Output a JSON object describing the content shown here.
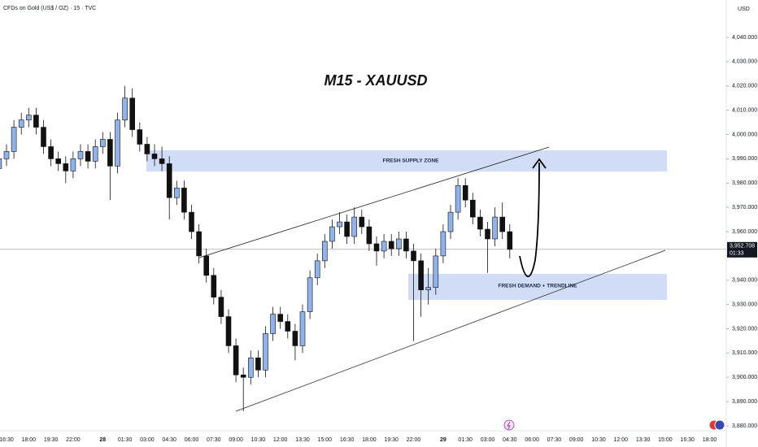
{
  "chart_data": {
    "type": "candlestick",
    "title": "M15 - XAUUSD",
    "symbol_header": "CFDs on Gold (US$ / OZ) · 15 · TVC",
    "y_axis_unit": "USD",
    "annotations": [
      "FRESH SUPPLY ZONE",
      "FRESH DEMAND + TRENDLINE"
    ],
    "up_color": "#8fb3ea",
    "down_color": "#111111",
    "grid": false,
    "price_marker": {
      "value": 3952.708,
      "label": "3,952.708"
    },
    "countdown": "01:33",
    "ylim": [
      3878,
      4055.4
    ],
    "yticks": [
      {
        "value": 4040,
        "label": "4,040.000"
      },
      {
        "value": 4030,
        "label": "4,030.000"
      },
      {
        "value": 4020,
        "label": "4,020.000"
      },
      {
        "value": 4010,
        "label": "4,010.000"
      },
      {
        "value": 4000,
        "label": "4,000.000"
      },
      {
        "value": 3990,
        "label": "3,990.000"
      },
      {
        "value": 3980,
        "label": "3,980.000"
      },
      {
        "value": 3970,
        "label": "3,970.000"
      },
      {
        "value": 3960,
        "label": "3,960.000"
      },
      {
        "value": 3950,
        "label": "3,950.000"
      },
      {
        "value": 3940,
        "label": "3,940.000"
      },
      {
        "value": 3930,
        "label": "3,930.000"
      },
      {
        "value": 3920,
        "label": "3,920.000"
      },
      {
        "value": 3910,
        "label": "3,910.000"
      },
      {
        "value": 3900,
        "label": "3,900.000"
      },
      {
        "value": 3890,
        "label": "3,890.000"
      },
      {
        "value": 3880,
        "label": "3,880.000"
      }
    ],
    "categories": [
      null,
      "16:30",
      null,
      null,
      "18:00",
      null,
      null,
      "19:30",
      null,
      null,
      "22:00",
      null,
      null,
      null,
      "28",
      null,
      null,
      "01:30",
      null,
      null,
      "03:00",
      null,
      null,
      "04:30",
      null,
      null,
      "06:00",
      null,
      null,
      "07:30",
      null,
      null,
      "09:00",
      null,
      null,
      "10:30",
      null,
      null,
      "12:00",
      null,
      null,
      "13:30",
      null,
      null,
      "15:00",
      null,
      null,
      "16:30",
      null,
      null,
      "18:00",
      null,
      null,
      "19:30",
      null,
      null,
      "22:00",
      null,
      null,
      null,
      "29",
      null,
      null,
      "01:30",
      null,
      null,
      "03:00",
      null,
      null,
      "04:30",
      null,
      null,
      "06:00",
      null,
      null,
      "07:30",
      null,
      null,
      "09:00",
      null,
      null,
      "10:30",
      null,
      null,
      "12:00",
      null,
      null,
      "13:30",
      null,
      null,
      "15:00",
      null,
      null,
      "16:30",
      null,
      null,
      "18:00"
    ],
    "open": [
      3986,
      3990,
      3993,
      4003,
      4006,
      4008,
      4003,
      3995,
      3990,
      3988,
      3985,
      3990,
      3993,
      3989,
      3995,
      3998,
      3987,
      4006,
      4015,
      4002,
      3996,
      3992,
      3990,
      3988,
      3974,
      3978,
      3968,
      3960,
      3950,
      3942,
      3933,
      3925,
      3913,
      3901,
      3900,
      3908,
      3903,
      3918,
      3926,
      3923,
      3919,
      3913,
      3927,
      3941,
      3948,
      3956,
      3962,
      3964,
      3958,
      3966,
      3962,
      3955,
      3952,
      3956,
      3953,
      3957,
      3952,
      3948,
      3936,
      3937,
      3950,
      3960,
      3968,
      3979,
      3973,
      3966,
      3961,
      3957,
      3966,
      3960,
      null,
      null,
      null,
      null,
      null,
      null,
      null,
      null,
      null,
      null,
      null,
      null,
      null,
      null,
      null,
      null,
      null,
      null,
      null,
      null,
      null,
      null,
      null,
      null,
      null,
      null,
      null
    ],
    "high": [
      3993,
      3996,
      4006,
      4009,
      4011,
      4011,
      4006,
      3998,
      3993,
      3991,
      3993,
      3996,
      3996,
      3998,
      4001,
      4001,
      4009,
      4020,
      4019,
      4005,
      3999,
      3996,
      3995,
      3991,
      3981,
      3981,
      3971,
      3963,
      3953,
      3945,
      3936,
      3928,
      3916,
      3904,
      3911,
      3911,
      3921,
      3929,
      3929,
      3926,
      3922,
      3930,
      3944,
      3951,
      3959,
      3965,
      3968,
      3967,
      3970,
      3969,
      3965,
      3958,
      3959,
      3959,
      3960,
      3960,
      3955,
      3951,
      3945,
      3953,
      3963,
      3971,
      3982,
      3982,
      3976,
      3969,
      3964,
      3970,
      3972,
      3963,
      null,
      null,
      null,
      null,
      null,
      null,
      null,
      null,
      null,
      null,
      null,
      null,
      null,
      null,
      null,
      null,
      null,
      null,
      null,
      null,
      null,
      null,
      null,
      null,
      null,
      null,
      null
    ],
    "low": [
      3983,
      3987,
      3990,
      4000,
      4003,
      4000,
      3992,
      3987,
      3985,
      3980,
      3982,
      3987,
      3986,
      3986,
      3992,
      3973,
      3984,
      4003,
      3999,
      3993,
      3989,
      3987,
      3985,
      3965,
      3971,
      3965,
      3957,
      3947,
      3939,
      3930,
      3922,
      3910,
      3898,
      3886,
      3897,
      3900,
      3900,
      3915,
      3920,
      3916,
      3907,
      3910,
      3924,
      3938,
      3945,
      3953,
      3959,
      3955,
      3955,
      3959,
      3952,
      3946,
      3949,
      3950,
      3950,
      3949,
      3915,
      3925,
      3930,
      3934,
      3947,
      3957,
      3965,
      3970,
      3963,
      3958,
      3943,
      3954,
      3957,
      3949,
      null,
      null,
      null,
      null,
      null,
      null,
      null,
      null,
      null,
      null,
      null,
      null,
      null,
      null,
      null,
      null,
      null,
      null,
      null,
      null,
      null,
      null,
      null,
      null,
      null,
      null,
      null
    ],
    "close": [
      3990,
      3993,
      4003,
      4006,
      4008,
      4003,
      3995,
      3990,
      3988,
      3985,
      3990,
      3993,
      3989,
      3995,
      3998,
      3987,
      4006,
      4015,
      4002,
      3996,
      3992,
      3990,
      3988,
      3974,
      3978,
      3968,
      3960,
      3950,
      3942,
      3933,
      3925,
      3913,
      3901,
      3900,
      3908,
      3903,
      3918,
      3926,
      3923,
      3919,
      3913,
      3927,
      3941,
      3948,
      3956,
      3962,
      3964,
      3958,
      3966,
      3962,
      3955,
      3952,
      3956,
      3953,
      3957,
      3952,
      3948,
      3936,
      3937,
      3950,
      3960,
      3968,
      3979,
      3973,
      3966,
      3961,
      3957,
      3966,
      3960,
      3952.708,
      null,
      null,
      null,
      null,
      null,
      null,
      null,
      null,
      null,
      null,
      null,
      null,
      null,
      null,
      null,
      null,
      null,
      null,
      null,
      null,
      null,
      null,
      null,
      null,
      null,
      null,
      null
    ]
  }
}
